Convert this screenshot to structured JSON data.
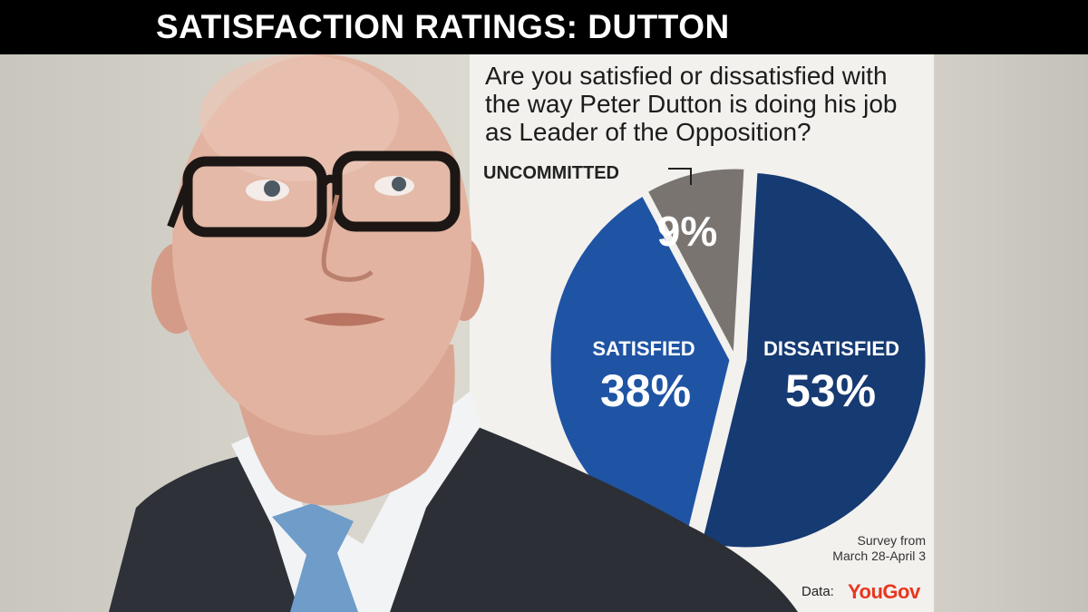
{
  "header": {
    "title": "SATISFACTION RATINGS: DUTTON"
  },
  "chart_data": {
    "type": "pie",
    "title": "Are you satisfied or dissatisfied with the way Peter Dutton is doing his job as Leader of the Opposition?",
    "slices": [
      {
        "name": "DISSATISFIED",
        "label": "53%",
        "value": 53,
        "color": "#163a72"
      },
      {
        "name": "SATISFIED",
        "label": "38%",
        "value": 38,
        "color": "#1f54a4"
      },
      {
        "name": "UNCOMMITTED",
        "label": "9%",
        "value": 9,
        "color": "#7a7470"
      }
    ]
  },
  "footnote": {
    "survey_line1": "Survey from",
    "survey_line2": "March 28-April 3"
  },
  "source": {
    "prefix": "Data:",
    "brand": "YouGov"
  }
}
